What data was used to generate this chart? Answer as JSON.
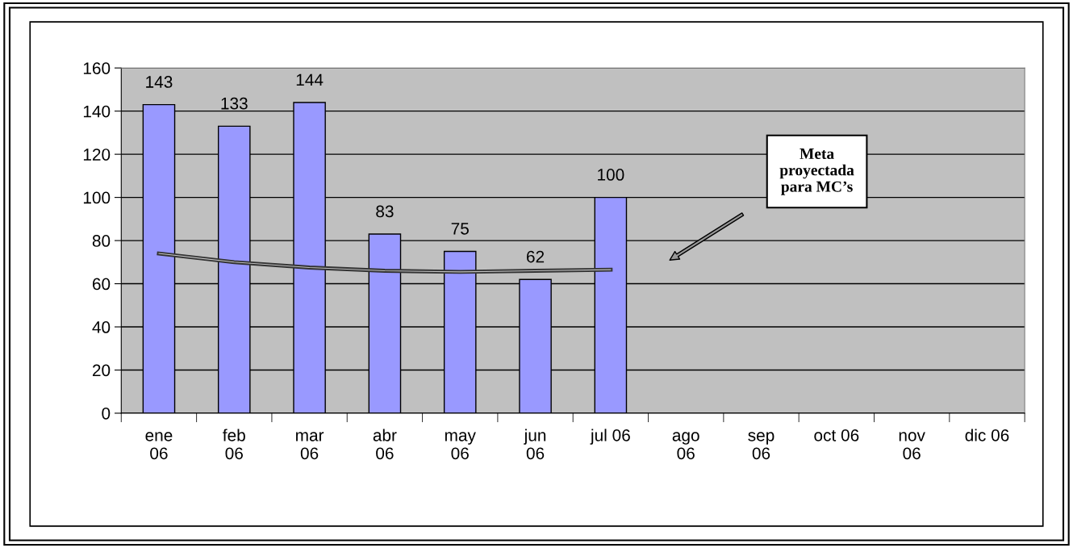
{
  "chart_data": {
    "type": "bar",
    "categories": [
      "ene\n06",
      "feb\n06",
      "mar\n06",
      "abr\n06",
      "may\n06",
      "jun\n06",
      "jul 06",
      "ago\n06",
      "sep\n06",
      "oct 06",
      "nov\n06",
      "dic 06"
    ],
    "series": [
      {
        "color": "#9999ff",
        "values": [
          143,
          133,
          144,
          83,
          75,
          62,
          100,
          null,
          null,
          null,
          null,
          null
        ],
        "value_labels": [
          "143",
          "133",
          "144",
          "83",
          "75",
          "62",
          "100",
          null,
          null,
          null,
          null,
          null
        ]
      },
      {
        "type": "line",
        "color": "#333333",
        "values": [
          74,
          70,
          67.5,
          66,
          65.5,
          66,
          66.5,
          null,
          null,
          null,
          null,
          null
        ]
      }
    ],
    "ylim": [
      0,
      160
    ],
    "yticks": [
      0,
      20,
      40,
      60,
      80,
      100,
      120,
      140,
      160
    ],
    "grid": "y",
    "legend": false,
    "annotations": [
      "Meta\nproyectada\npara MC’s"
    ]
  }
}
